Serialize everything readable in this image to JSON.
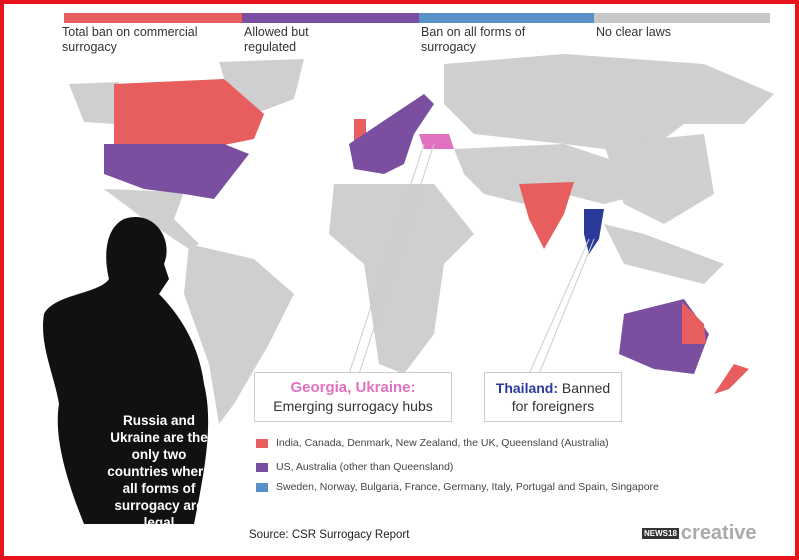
{
  "legend": [
    {
      "label": "Total ban on commercial surrogacy",
      "color": "#e85d5d"
    },
    {
      "label": "Allowed but regulated",
      "color": "#7b4fa0"
    },
    {
      "label": "Ban on all forms of surrogacy",
      "color": "#5a90c8"
    },
    {
      "label": "No clear laws",
      "color": "#c8c8c8"
    }
  ],
  "callouts": {
    "georgia_title": "Georgia, Ukraine:",
    "georgia_text": "Emerging surrogacy hubs",
    "thailand_title": "Thailand:",
    "thailand_text": "Banned for foreigners"
  },
  "country_keys": [
    {
      "text": "India, Canada, Denmark, New Zealand, the UK, Queensland (Australia)",
      "color": "#e85d5d"
    },
    {
      "text": "US, Australia (other than Queensland)",
      "color": "#7b4fa0"
    },
    {
      "text": "Sweden, Norway, Bulgaria, France, Germany, Italy, Portugal and Spain, Singapore",
      "color": "#5a90c8"
    }
  ],
  "note": "Russia and Ukraine are the only two countries where all forms of surrogacy are legal",
  "source": "Source: CSR Surrogacy Report",
  "logo": {
    "news": "NEWS18",
    "creative": "creative"
  },
  "colors": {
    "border": "#e8141b",
    "highlight": "#e070c0",
    "thailand": "#2a3a9a"
  }
}
